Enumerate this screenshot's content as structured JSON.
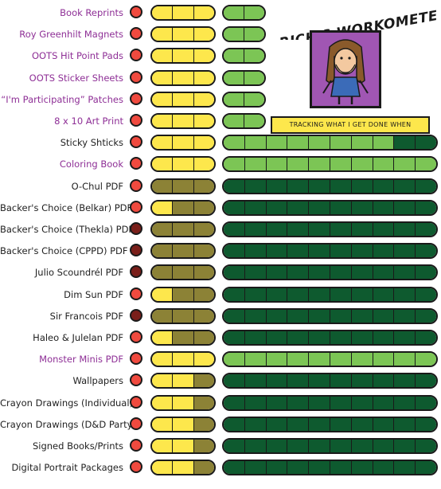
{
  "header": {
    "title": "RICH'S WORKOMETER!",
    "tagline": "TRACKING WHAT I GET DONE WHEN"
  },
  "colors": {
    "red": "#f04a3f",
    "dark_red": "#7a1f1a",
    "yellow": "#fde74c",
    "olive": "#8c8236",
    "light_green": "#7cc555",
    "dark_green": "#0e5a2f",
    "purple_text": "#8e2f96",
    "portrait_bg": "#a056b3"
  },
  "items": [
    {
      "label": "Book Reprints",
      "purple": true,
      "dot": "red",
      "three": [
        "yellow",
        "yellow",
        "yellow"
      ],
      "right": [
        "light_green",
        "light_green"
      ]
    },
    {
      "label": "Roy Greenhilt Magnets",
      "purple": true,
      "dot": "red",
      "three": [
        "yellow",
        "yellow",
        "yellow"
      ],
      "right": [
        "light_green",
        "light_green"
      ]
    },
    {
      "label": "OOTS Hit Point Pads",
      "purple": true,
      "dot": "red",
      "three": [
        "yellow",
        "yellow",
        "yellow"
      ],
      "right": [
        "light_green",
        "light_green"
      ]
    },
    {
      "label": "OOTS Sticker Sheets",
      "purple": true,
      "dot": "red",
      "three": [
        "yellow",
        "yellow",
        "yellow"
      ],
      "right": [
        "light_green",
        "light_green"
      ]
    },
    {
      "label": "“I'm Participating” Patches",
      "purple": true,
      "dot": "red",
      "three": [
        "yellow",
        "yellow",
        "yellow"
      ],
      "right": [
        "light_green",
        "light_green"
      ]
    },
    {
      "label": "8 x 10 Art Print",
      "purple": true,
      "dot": "red",
      "three": [
        "yellow",
        "yellow",
        "yellow"
      ],
      "right": [
        "light_green",
        "light_green"
      ]
    },
    {
      "label": "Sticky Shticks",
      "purple": false,
      "dot": "red",
      "three": [
        "yellow",
        "yellow",
        "yellow"
      ],
      "right": [
        "light_green",
        "light_green",
        "light_green",
        "light_green",
        "light_green",
        "light_green",
        "light_green",
        "light_green",
        "dark_green",
        "dark_green"
      ]
    },
    {
      "label": "Coloring Book",
      "purple": true,
      "dot": "red",
      "three": [
        "yellow",
        "yellow",
        "yellow"
      ],
      "right": [
        "light_green",
        "light_green",
        "light_green",
        "light_green",
        "light_green",
        "light_green",
        "light_green",
        "light_green",
        "light_green",
        "light_green"
      ]
    },
    {
      "label": "O-Chul PDF",
      "purple": false,
      "dot": "red",
      "three": [
        "olive",
        "olive",
        "olive"
      ],
      "right": [
        "dark_green",
        "dark_green",
        "dark_green",
        "dark_green",
        "dark_green",
        "dark_green",
        "dark_green",
        "dark_green",
        "dark_green",
        "dark_green"
      ]
    },
    {
      "label": "Backer's Choice (Belkar) PDF",
      "purple": false,
      "dot": "red",
      "three": [
        "yellow",
        "olive",
        "olive"
      ],
      "right": [
        "dark_green",
        "dark_green",
        "dark_green",
        "dark_green",
        "dark_green",
        "dark_green",
        "dark_green",
        "dark_green",
        "dark_green",
        "dark_green"
      ]
    },
    {
      "label": "Backer's Choice (Thekla) PDF",
      "purple": false,
      "dot": "dark_red",
      "three": [
        "olive",
        "olive",
        "olive"
      ],
      "right": [
        "dark_green",
        "dark_green",
        "dark_green",
        "dark_green",
        "dark_green",
        "dark_green",
        "dark_green",
        "dark_green",
        "dark_green",
        "dark_green"
      ]
    },
    {
      "label": "Backer's Choice (CPPD) PDF",
      "purple": false,
      "dot": "dark_red",
      "three": [
        "olive",
        "olive",
        "olive"
      ],
      "right": [
        "dark_green",
        "dark_green",
        "dark_green",
        "dark_green",
        "dark_green",
        "dark_green",
        "dark_green",
        "dark_green",
        "dark_green",
        "dark_green"
      ]
    },
    {
      "label": "Julio Scoundrél PDF",
      "purple": false,
      "dot": "dark_red",
      "three": [
        "olive",
        "olive",
        "olive"
      ],
      "right": [
        "dark_green",
        "dark_green",
        "dark_green",
        "dark_green",
        "dark_green",
        "dark_green",
        "dark_green",
        "dark_green",
        "dark_green",
        "dark_green"
      ]
    },
    {
      "label": "Dim Sun PDF",
      "purple": false,
      "dot": "red",
      "three": [
        "yellow",
        "olive",
        "olive"
      ],
      "right": [
        "dark_green",
        "dark_green",
        "dark_green",
        "dark_green",
        "dark_green",
        "dark_green",
        "dark_green",
        "dark_green",
        "dark_green",
        "dark_green"
      ]
    },
    {
      "label": "Sir Francois  PDF",
      "purple": false,
      "dot": "dark_red",
      "three": [
        "olive",
        "olive",
        "olive"
      ],
      "right": [
        "dark_green",
        "dark_green",
        "dark_green",
        "dark_green",
        "dark_green",
        "dark_green",
        "dark_green",
        "dark_green",
        "dark_green",
        "dark_green"
      ]
    },
    {
      "label": "Haleo & Julelan PDF",
      "purple": false,
      "dot": "red",
      "three": [
        "yellow",
        "olive",
        "olive"
      ],
      "right": [
        "dark_green",
        "dark_green",
        "dark_green",
        "dark_green",
        "dark_green",
        "dark_green",
        "dark_green",
        "dark_green",
        "dark_green",
        "dark_green"
      ]
    },
    {
      "label": "Monster Minis PDF",
      "purple": true,
      "dot": "red",
      "three": [
        "yellow",
        "yellow",
        "yellow"
      ],
      "right": [
        "light_green",
        "light_green",
        "light_green",
        "light_green",
        "light_green",
        "light_green",
        "light_green",
        "light_green",
        "light_green",
        "light_green"
      ]
    },
    {
      "label": "Wallpapers",
      "purple": false,
      "dot": "red",
      "three": [
        "yellow",
        "yellow",
        "olive"
      ],
      "right": [
        "dark_green",
        "dark_green",
        "dark_green",
        "dark_green",
        "dark_green",
        "dark_green",
        "dark_green",
        "dark_green",
        "dark_green",
        "dark_green"
      ]
    },
    {
      "label": "Crayon Drawings (Individual)",
      "purple": false,
      "dot": "red",
      "three": [
        "yellow",
        "yellow",
        "olive"
      ],
      "right": [
        "dark_green",
        "dark_green",
        "dark_green",
        "dark_green",
        "dark_green",
        "dark_green",
        "dark_green",
        "dark_green",
        "dark_green",
        "dark_green"
      ]
    },
    {
      "label": "Crayon Drawings (D&D Party)",
      "purple": false,
      "dot": "red",
      "three": [
        "yellow",
        "yellow",
        "olive"
      ],
      "right": [
        "dark_green",
        "dark_green",
        "dark_green",
        "dark_green",
        "dark_green",
        "dark_green",
        "dark_green",
        "dark_green",
        "dark_green",
        "dark_green"
      ]
    },
    {
      "label": "Signed Books/Prints",
      "purple": false,
      "dot": "red",
      "three": [
        "yellow",
        "yellow",
        "olive"
      ],
      "right": [
        "dark_green",
        "dark_green",
        "dark_green",
        "dark_green",
        "dark_green",
        "dark_green",
        "dark_green",
        "dark_green",
        "dark_green",
        "dark_green"
      ]
    },
    {
      "label": "Digital Portrait Packages",
      "purple": false,
      "dot": "red",
      "three": [
        "yellow",
        "yellow",
        "olive"
      ],
      "right": [
        "dark_green",
        "dark_green",
        "dark_green",
        "dark_green",
        "dark_green",
        "dark_green",
        "dark_green",
        "dark_green",
        "dark_green",
        "dark_green"
      ]
    }
  ]
}
